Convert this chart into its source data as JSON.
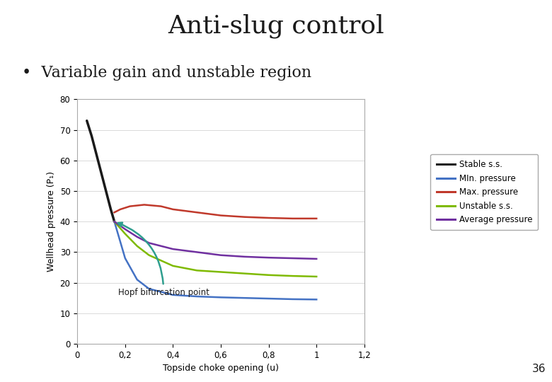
{
  "title": "Anti-slug control",
  "subtitle": "•  Variable gain and unstable region",
  "xlabel": "Topside choke opening (u)",
  "ylabel": "Wellhead pressure (P₁)",
  "xlim": [
    0,
    1.2
  ],
  "ylim": [
    0,
    80
  ],
  "xticks": [
    0,
    0.2,
    0.4,
    0.6,
    0.8,
    1.0,
    1.2
  ],
  "yticks": [
    0,
    10,
    20,
    30,
    40,
    50,
    60,
    70,
    80
  ],
  "header_line_color": "#b8860b",
  "title_fontsize": 26,
  "subtitle_fontsize": 16,
  "page_num": "36",
  "annotation_text": "Hopf bifurcation point",
  "lines": {
    "stable_ss": {
      "label": "Stable s.s.",
      "color": "#1a1a1a",
      "linewidth": 2.5,
      "x": [
        0.04,
        0.06,
        0.08,
        0.1,
        0.12,
        0.14,
        0.155
      ],
      "y": [
        73,
        68,
        62,
        56,
        50,
        44,
        40
      ]
    },
    "min_pressure": {
      "label": "MIn. pressure",
      "color": "#4472c4",
      "linewidth": 1.8,
      "x": [
        0.155,
        0.2,
        0.25,
        0.3,
        0.4,
        0.5,
        0.6,
        0.7,
        0.8,
        0.9,
        1.0
      ],
      "y": [
        40,
        28,
        21,
        18,
        16,
        15.5,
        15.2,
        15.0,
        14.8,
        14.6,
        14.5
      ]
    },
    "max_pressure": {
      "label": "Max. pressure",
      "color": "#c0392b",
      "linewidth": 1.8,
      "x": [
        0.155,
        0.18,
        0.22,
        0.28,
        0.35,
        0.4,
        0.5,
        0.6,
        0.7,
        0.8,
        0.9,
        1.0
      ],
      "y": [
        43,
        44,
        45,
        45.5,
        45,
        44,
        43,
        42,
        41.5,
        41.2,
        41.0,
        41.0
      ]
    },
    "unstable_ss": {
      "label": "Unstable s.s.",
      "color": "#7fba00",
      "linewidth": 1.8,
      "x": [
        0.155,
        0.2,
        0.25,
        0.3,
        0.4,
        0.5,
        0.6,
        0.7,
        0.8,
        0.9,
        1.0
      ],
      "y": [
        40,
        36,
        32,
        29,
        25.5,
        24,
        23.5,
        23,
        22.5,
        22.2,
        22.0
      ]
    },
    "avg_pressure": {
      "label": "Average pressure",
      "color": "#7030a0",
      "linewidth": 1.8,
      "x": [
        0.155,
        0.2,
        0.25,
        0.3,
        0.4,
        0.5,
        0.6,
        0.7,
        0.8,
        0.9,
        1.0
      ],
      "y": [
        40,
        37.5,
        35,
        33,
        31,
        30,
        29,
        28.5,
        28.2,
        28.0,
        27.8
      ]
    }
  }
}
